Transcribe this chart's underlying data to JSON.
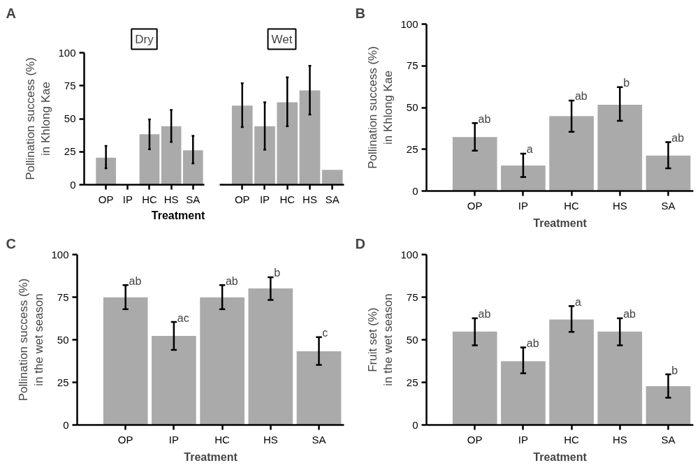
{
  "chart_data": [
    {
      "type": "bar",
      "title": "A",
      "subtitle": "Dry",
      "xlabel": "Treatment",
      "ylabel": "Pollination success (%)\nin Khlong Kae",
      "categories": [
        "OP",
        "IP",
        "HC",
        "HS",
        "SA"
      ],
      "values": [
        20.5,
        0,
        38.2,
        44.3,
        26
      ],
      "errors": [
        [
          12.5,
          29.4
        ],
        null,
        [
          26.9,
          49.5
        ],
        [
          32.4,
          56.6
        ],
        [
          16.2,
          37
        ]
      ],
      "color": "#aaaaaa",
      "ylim": [
        0,
        100
      ],
      "yticks": [
        0,
        25,
        50,
        75,
        100
      ],
      "grid": false
    },
    {
      "type": "bar",
      "subtitle": "Wet",
      "categories": [
        "OP",
        "IP",
        "HC",
        "HS",
        "SA"
      ],
      "values": [
        59.9,
        44.3,
        62.4,
        71.4,
        11.3
      ],
      "errors": [
        [
          43.7,
          76.8
        ],
        [
          26.6,
          62.4
        ],
        [
          44.3,
          81.3
        ],
        [
          53.2,
          90.1
        ],
        null
      ],
      "color": "#aaaaaa",
      "ylim": [
        0,
        100
      ],
      "tick_labels": "x",
      "grid": false
    },
    {
      "type": "bar",
      "title": "B",
      "xlabel": "Treatment",
      "ylabel": "Pollination success (%)\nin Khlong Kae",
      "categories": [
        "OP",
        "IP",
        "HC",
        "HS",
        "SA"
      ],
      "values": [
        32.3,
        15.3,
        44.9,
        51.7,
        21.2
      ],
      "errors": [
        [
          24.2,
          40.7
        ],
        [
          8.4,
          22.4
        ],
        [
          35.5,
          54.2
        ],
        [
          42,
          62.2
        ],
        [
          13.6,
          29.3
        ]
      ],
      "color": "#aaaaaa",
      "ylim": [
        0,
        100
      ],
      "yticks": [
        0,
        25,
        50,
        75,
        100
      ],
      "grid": false,
      "annotations": [
        "ab",
        "a",
        "ab",
        "b",
        "ab"
      ]
    },
    {
      "type": "bar",
      "title": "C",
      "xlabel": "Treatment",
      "ylabel": "Pollination success (%)\nin the wet season",
      "categories": [
        "OP",
        "IP",
        "HC",
        "HS",
        "SA"
      ],
      "values": [
        74.9,
        52.3,
        74.9,
        80.1,
        43.2
      ],
      "errors": [
        [
          67.9,
          82.1
        ],
        [
          44.1,
          60.4
        ],
        [
          67.9,
          82.1
        ],
        [
          73.4,
          86.7
        ],
        [
          35.2,
          51.5
        ]
      ],
      "color": "#aaaaaa",
      "ylim": [
        0,
        100
      ],
      "yticks": [
        0,
        25,
        50,
        75,
        100
      ],
      "grid": false,
      "annotations": [
        "ab",
        "ac",
        "ab",
        "b",
        "c"
      ]
    },
    {
      "type": "bar",
      "title": "D",
      "xlabel": "Treatment",
      "ylabel": "Fruit set (%)\nin the wet season",
      "categories": [
        "OP",
        "IP",
        "HC",
        "HS",
        "SA"
      ],
      "values": [
        54.8,
        37.4,
        61.9,
        54.8,
        22.7
      ],
      "errors": [
        [
          46.7,
          62.6
        ],
        [
          30.3,
          45.5
        ],
        [
          54.6,
          69.8
        ],
        [
          46.7,
          62.6
        ],
        [
          16,
          29.7
        ]
      ],
      "color": "#aaaaaa",
      "ylim": [
        0,
        100
      ],
      "yticks": [
        0,
        25,
        50,
        75,
        100
      ],
      "grid": false,
      "annotations": [
        "ab",
        "ab",
        "a",
        "ab",
        "b"
      ]
    }
  ]
}
